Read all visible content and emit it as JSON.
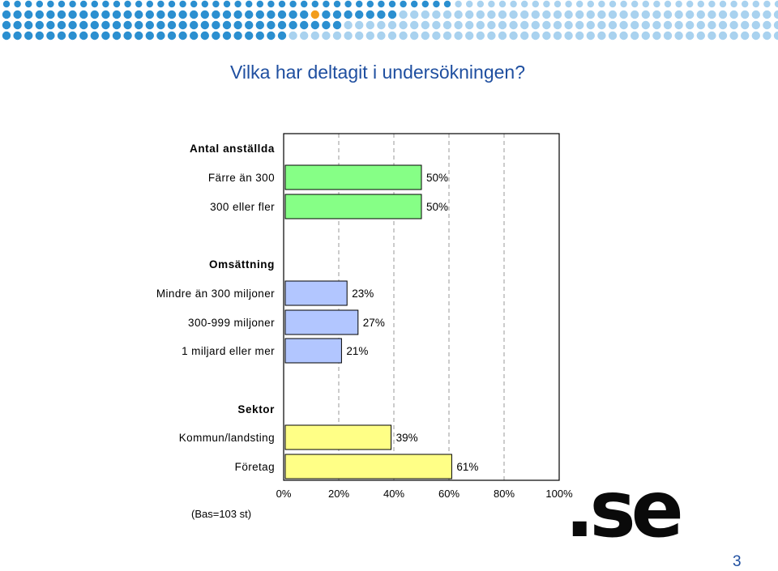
{
  "slide": {
    "title": "Vilka har deltagit i undersökningen?",
    "base_note": "(Bas=103 st)",
    "page_number": "3",
    "logo_text": ".se"
  },
  "colors": {
    "title": "#1f4fa0",
    "dot_blue": "#2b8fd0",
    "dot_light": "#a9d2ef",
    "dot_accent": "#f29d1c",
    "logo": "#0a0a0a"
  },
  "chart_data": {
    "type": "bar",
    "orientation": "horizontal",
    "xlim": [
      0,
      100
    ],
    "x_ticks": [
      "0%",
      "20%",
      "40%",
      "60%",
      "80%",
      "100%"
    ],
    "grid": "vertical-dashed",
    "groups": [
      {
        "heading": "Antal anställda",
        "color": "#86ff86",
        "bars": [
          {
            "category": "Färre än 300",
            "value": 50,
            "label": "50%"
          },
          {
            "category": "300 eller fler",
            "value": 50,
            "label": "50%"
          }
        ]
      },
      {
        "heading": "Omsättning",
        "color": "#b2c6ff",
        "bars": [
          {
            "category": "Mindre än 300 miljoner",
            "value": 23,
            "label": "23%"
          },
          {
            "category": "300-999 miljoner",
            "value": 27,
            "label": "27%"
          },
          {
            "category": "1 miljard eller mer",
            "value": 21,
            "label": "21%"
          }
        ]
      },
      {
        "heading": "Sektor",
        "color": "#ffff86",
        "bars": [
          {
            "category": "Kommun/landsting",
            "value": 39,
            "label": "39%"
          },
          {
            "category": "Företag",
            "value": 61,
            "label": "61%"
          }
        ]
      }
    ]
  }
}
